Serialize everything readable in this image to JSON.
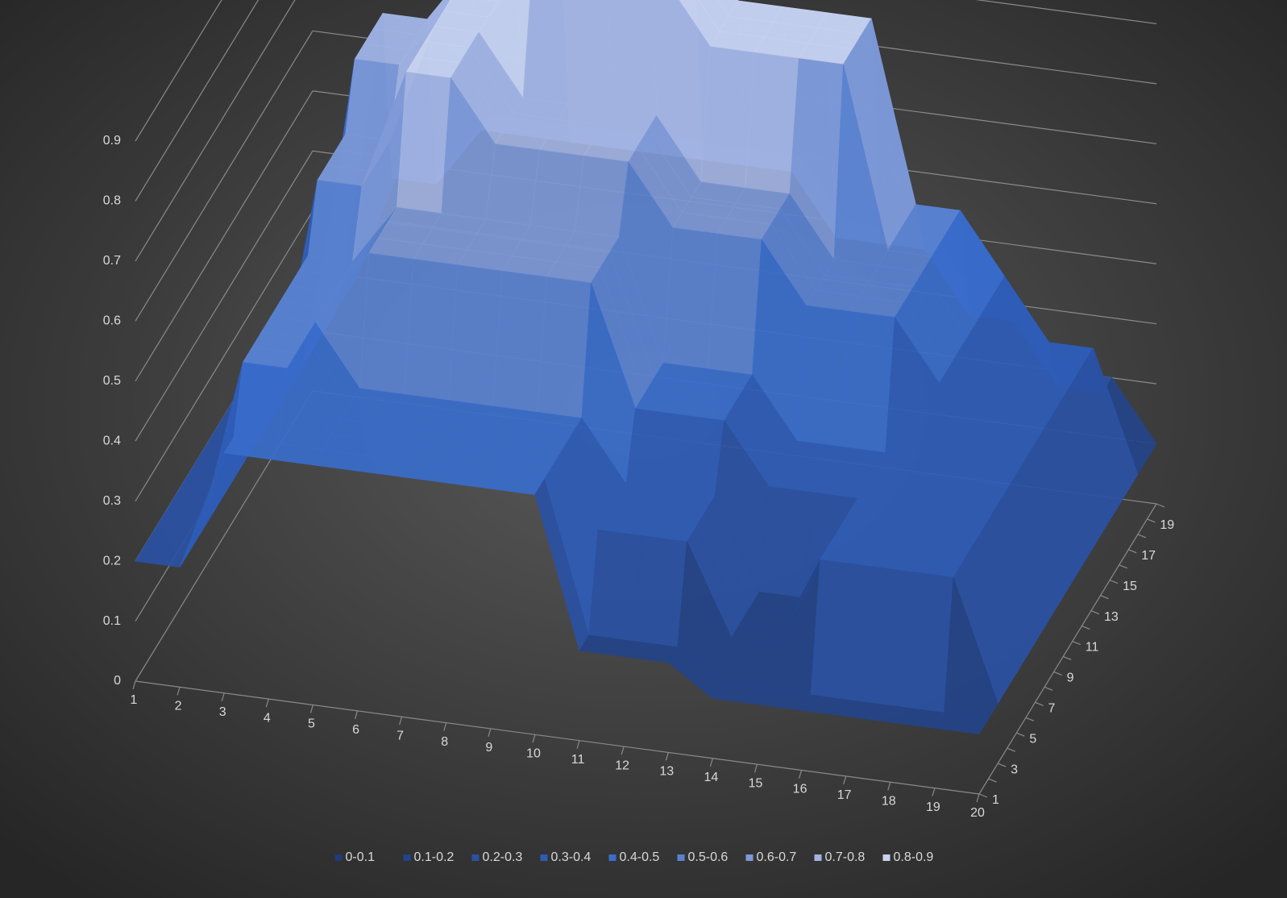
{
  "chart_data": {
    "type": "surface",
    "categories": [
      "1",
      "2",
      "3",
      "4",
      "5",
      "6",
      "7",
      "8",
      "9",
      "10",
      "11",
      "12",
      "13",
      "14",
      "15",
      "16",
      "17",
      "18",
      "19",
      "20"
    ],
    "depth_categories": [
      "1",
      null,
      "3",
      null,
      "5",
      null,
      "7",
      null,
      "9",
      null,
      "11",
      null,
      "13",
      null,
      "15",
      null,
      "17",
      null,
      "19",
      null
    ],
    "zlim": [
      0,
      0.9
    ],
    "zticks": [
      0,
      0.1,
      0.2,
      0.3,
      0.4,
      0.5,
      0.6,
      0.7,
      0.8,
      0.9
    ],
    "grid": true,
    "legend_position": "bottom",
    "legend": [
      {
        "name": "0-0.1",
        "color": "#1f3b78"
      },
      {
        "name": "0.1-0.2",
        "color": "#244489"
      },
      {
        "name": "0.2-0.3",
        "color": "#2a51a3"
      },
      {
        "name": "0.3-0.4",
        "color": "#2f5cb6"
      },
      {
        "name": "0.4-0.5",
        "color": "#3a6ccb"
      },
      {
        "name": "0.5-0.6",
        "color": "#5a82cf"
      },
      {
        "name": "0.6-0.7",
        "color": "#7d98d6"
      },
      {
        "name": "0.7-0.8",
        "color": "#a2b3e2"
      },
      {
        "name": "0.8-0.9",
        "color": "#c8d2ef"
      }
    ],
    "z": [
      [
        0.2,
        0.2,
        0.4,
        0.4,
        0.4,
        0.4,
        0.4,
        0.4,
        0.4,
        0.4,
        0.15,
        0.15,
        0.15,
        0.1,
        0.1,
        0.1,
        0.1,
        0.1,
        0.1,
        0.1
      ],
      [
        0.2,
        0.2,
        0.4,
        0.4,
        0.4,
        0.4,
        0.4,
        0.4,
        0.4,
        0.4,
        0.15,
        0.15,
        0.15,
        0.1,
        0.1,
        0.1,
        0.1,
        0.1,
        0.1,
        0.1
      ],
      [
        0.2,
        0.2,
        0.5,
        0.5,
        0.4,
        0.4,
        0.4,
        0.4,
        0.4,
        0.4,
        0.3,
        0.3,
        0.3,
        0.15,
        0.15,
        0.3,
        0.3,
        0.3,
        0.3,
        0.1
      ],
      [
        0.2,
        0.2,
        0.5,
        0.5,
        0.4,
        0.4,
        0.4,
        0.4,
        0.4,
        0.4,
        0.3,
        0.3,
        0.3,
        0.15,
        0.15,
        0.3,
        0.3,
        0.3,
        0.3,
        0.1
      ],
      [
        0.2,
        0.2,
        0.5,
        0.5,
        0.4,
        0.4,
        0.4,
        0.4,
        0.4,
        0.4,
        0.3,
        0.3,
        0.3,
        0.15,
        0.15,
        0.3,
        0.3,
        0.3,
        0.3,
        0.1
      ],
      [
        0.2,
        0.2,
        0.5,
        0.5,
        0.4,
        0.4,
        0.4,
        0.4,
        0.4,
        0.4,
        0.3,
        0.3,
        0.3,
        0.15,
        0.15,
        0.3,
        0.3,
        0.3,
        0.3,
        0.1
      ],
      [
        0.2,
        0.2,
        0.5,
        0.5,
        0.6,
        0.6,
        0.6,
        0.6,
        0.6,
        0.6,
        0.4,
        0.4,
        0.4,
        0.3,
        0.3,
        0.3,
        0.3,
        0.3,
        0.3,
        0.1
      ],
      [
        0.2,
        0.2,
        0.5,
        0.5,
        0.6,
        0.6,
        0.6,
        0.6,
        0.6,
        0.6,
        0.4,
        0.4,
        0.4,
        0.3,
        0.3,
        0.3,
        0.3,
        0.3,
        0.3,
        0.1
      ],
      [
        0.2,
        0.2,
        0.5,
        0.5,
        0.6,
        0.6,
        0.6,
        0.6,
        0.6,
        0.6,
        0.4,
        0.4,
        0.4,
        0.3,
        0.3,
        0.3,
        0.3,
        0.3,
        0.3,
        0.1
      ],
      [
        0.2,
        0.2,
        0.5,
        0.5,
        0.6,
        0.6,
        0.6,
        0.6,
        0.6,
        0.6,
        0.4,
        0.4,
        0.4,
        0.3,
        0.3,
        0.3,
        0.3,
        0.3,
        0.3,
        0.1
      ],
      [
        0.2,
        0.2,
        0.6,
        0.6,
        0.8,
        0.8,
        0.7,
        0.7,
        0.7,
        0.7,
        0.6,
        0.6,
        0.6,
        0.5,
        0.5,
        0.5,
        0.4,
        0.3,
        0.3,
        0.1
      ],
      [
        0.2,
        0.2,
        0.6,
        0.6,
        0.8,
        0.8,
        0.7,
        0.7,
        0.7,
        0.7,
        0.6,
        0.6,
        0.6,
        0.5,
        0.5,
        0.5,
        0.4,
        0.3,
        0.3,
        0.1
      ],
      [
        0.2,
        0.2,
        0.6,
        0.6,
        0.8,
        0.8,
        0.7,
        0.7,
        0.7,
        0.7,
        0.6,
        0.6,
        0.6,
        0.5,
        0.5,
        0.5,
        0.4,
        0.3,
        0.3,
        0.1
      ],
      [
        0.2,
        0.2,
        0.6,
        0.6,
        0.8,
        0.8,
        0.7,
        0.7,
        0.7,
        0.7,
        0.6,
        0.6,
        0.6,
        0.5,
        0.5,
        0.5,
        0.4,
        0.3,
        0.3,
        0.1
      ],
      [
        0.2,
        0.2,
        0.7,
        0.7,
        0.8,
        0.8,
        0.9,
        0.9,
        0.9,
        0.9,
        0.8,
        0.8,
        0.8,
        0.8,
        0.5,
        0.5,
        0.4,
        0.3,
        0.3,
        0.1
      ],
      [
        0.2,
        0.2,
        0.7,
        0.7,
        0.8,
        0.8,
        0.9,
        0.9,
        0.9,
        0.9,
        0.8,
        0.8,
        0.8,
        0.8,
        0.5,
        0.5,
        0.4,
        0.3,
        0.3,
        0.1
      ],
      [
        0.2,
        0.2,
        0.7,
        0.7,
        0.8,
        0.8,
        0.9,
        0.9,
        0.9,
        0.9,
        0.8,
        0.8,
        0.8,
        0.8,
        0.5,
        0.5,
        0.4,
        0.3,
        0.3,
        0.1
      ],
      [
        0.2,
        0.2,
        0.7,
        0.7,
        0.8,
        0.8,
        0.9,
        0.9,
        0.9,
        0.9,
        0.8,
        0.8,
        0.8,
        0.8,
        0.5,
        0.5,
        0.4,
        0.3,
        0.3,
        0.1
      ],
      [
        0.2,
        0.2,
        0.4,
        0.4,
        0.5,
        0.5,
        0.5,
        0.5,
        0.5,
        0.5,
        0.5,
        0.5,
        0.4,
        0.4,
        0.4,
        0.3,
        0.3,
        0.2,
        0.2,
        0.1
      ],
      [
        0.2,
        0.2,
        0.4,
        0.4,
        0.5,
        0.5,
        0.5,
        0.5,
        0.5,
        0.5,
        0.5,
        0.5,
        0.4,
        0.4,
        0.4,
        0.3,
        0.3,
        0.2,
        0.2,
        0.1
      ]
    ]
  }
}
